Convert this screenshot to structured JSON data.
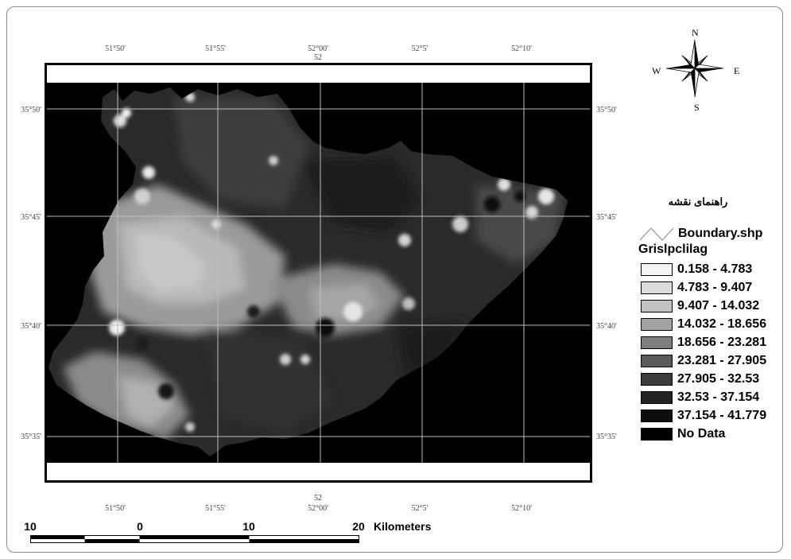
{
  "map": {
    "graticule": {
      "top_labels": [
        "51°50'",
        "51°55'",
        "52°00'",
        "52°5'",
        "52°10'"
      ],
      "bottom_labels": [
        "51°50'",
        "51°55'",
        "52°00'",
        "52°5'",
        "52°10'"
      ],
      "center_meridian_label": "52",
      "left_labels": [
        "35°50'",
        "35°45'",
        "35°40'",
        "35°35'"
      ],
      "right_labels": [
        "35°50'",
        "35°45'",
        "35°40'",
        "35°35'"
      ]
    }
  },
  "compass": {
    "north": "N",
    "south": "S",
    "east": "E",
    "west": "W"
  },
  "legend": {
    "title": "راهنمای نقشه",
    "boundary_label": "Boundary.shp",
    "layer_name": "Grislpclilag",
    "classes": [
      {
        "label": "0.158 - 4.783",
        "color": "#f4f4f4"
      },
      {
        "label": "4.783 - 9.407",
        "color": "#dcdcdc"
      },
      {
        "label": "9.407 - 14.032",
        "color": "#c2c2c2"
      },
      {
        "label": "14.032 - 18.656",
        "color": "#a2a2a2"
      },
      {
        "label": "18.656 - 23.281",
        "color": "#7e7e7e"
      },
      {
        "label": "23.281 - 27.905",
        "color": "#5a5a5a"
      },
      {
        "label": "27.905 - 32.53",
        "color": "#3c3c3c"
      },
      {
        "label": "32.53 - 37.154",
        "color": "#222222"
      },
      {
        "label": "37.154 - 41.779",
        "color": "#0e0e0e"
      },
      {
        "label": "No Data",
        "color": "#000000"
      }
    ]
  },
  "scale": {
    "ticks": [
      "10",
      "0",
      "10",
      "20"
    ],
    "unit": "Kilometers"
  }
}
